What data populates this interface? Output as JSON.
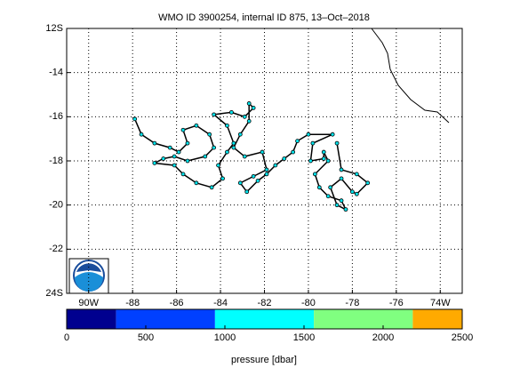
{
  "chart_data": {
    "type": "track",
    "title": "WMO ID 3900254, internal ID 875, 13–Oct–2018",
    "xlim": [
      -91,
      -73
    ],
    "ylim": [
      -24,
      -12
    ],
    "xticks": [
      {
        "value": -90,
        "label": "90W"
      },
      -88,
      -86,
      -84,
      -82,
      -80,
      -78,
      -76,
      {
        "value": -74,
        "label": "74W"
      }
    ],
    "yticks": [
      {
        "value": -12,
        "label": "12S"
      },
      -14,
      -16,
      -18,
      -20,
      -22,
      {
        "value": -24,
        "label": "24S"
      }
    ],
    "grid": true,
    "line_color": "#000000",
    "marker_color": "#00e5ee",
    "x": [
      -87.9,
      -87.6,
      -87.0,
      -86.3,
      -85.9,
      -85.5,
      -85.7,
      -85.1,
      -84.5,
      -84.3,
      -84.7,
      -85.5,
      -86.1,
      -86.6,
      -87.0,
      -86.1,
      -85.7,
      -85.1,
      -84.4,
      -83.9,
      -84.1,
      -83.7,
      -83.4,
      -83.7,
      -84.3,
      -83.5,
      -82.9,
      -82.5,
      -82.7,
      -82.7,
      -83.1,
      -83.4,
      -82.9,
      -82.1,
      -81.9,
      -82.5,
      -83.1,
      -82.8,
      -82.3,
      -81.9,
      -81.5,
      -81.1,
      -80.7,
      -80.5,
      -80.0,
      -78.9,
      -79.8,
      -79.9,
      -79.3,
      -79.3,
      -79.1,
      -79.7,
      -79.5,
      -79.1,
      -78.5,
      -78.3,
      -78.7,
      -79.0,
      -78.5,
      -78.0,
      -77.8,
      -77.3,
      -77.8,
      -78.5,
      -78.7
    ],
    "y": [
      -16.1,
      -16.8,
      -17.2,
      -17.4,
      -17.6,
      -17.2,
      -16.6,
      -16.4,
      -16.8,
      -17.4,
      -17.8,
      -18.0,
      -17.8,
      -17.9,
      -18.1,
      -18.2,
      -18.6,
      -19.0,
      -19.2,
      -18.8,
      -18.2,
      -17.6,
      -17.2,
      -16.4,
      -15.9,
      -15.8,
      -16.0,
      -15.6,
      -15.4,
      -16.2,
      -16.8,
      -17.4,
      -17.8,
      -17.6,
      -18.4,
      -18.7,
      -19.0,
      -19.4,
      -18.9,
      -18.6,
      -18.2,
      -17.9,
      -17.6,
      -17.1,
      -16.8,
      -16.8,
      -17.2,
      -18.0,
      -17.9,
      -17.6,
      -18.0,
      -18.6,
      -19.2,
      -19.6,
      -19.8,
      -20.2,
      -20.0,
      -19.2,
      -18.8,
      -19.4,
      -19.5,
      -19.0,
      -18.6,
      -18.4,
      -17.2
    ],
    "colorbar": {
      "label": "pressure [dbar]",
      "lim": [
        0,
        2500
      ],
      "ticks": [
        0,
        500,
        1000,
        1500,
        2000,
        2500
      ],
      "bins": [
        0,
        312.5,
        937.5,
        1562.5,
        2187.5,
        2500
      ],
      "colors": [
        "#00008f",
        "#0040ff",
        "#00ffff",
        "#80ff80",
        "#ffaa00"
      ]
    }
  }
}
